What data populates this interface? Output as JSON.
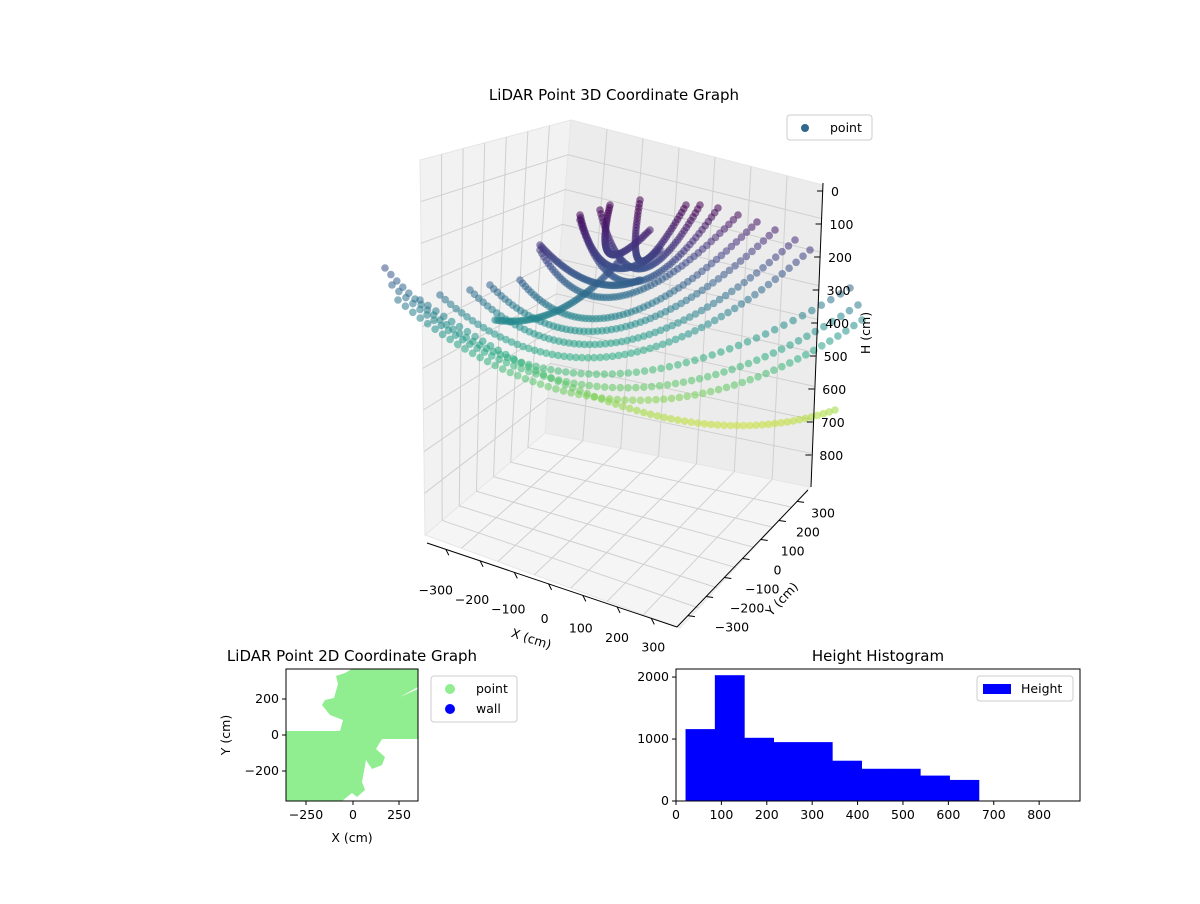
{
  "chart_data": [
    {
      "type": "scatter",
      "title": "LiDAR Point 3D Coordinate Graph",
      "xlabel": "X (cm)",
      "ylabel": "Y (cm)",
      "zlabel": "H (cm)",
      "xticks": [
        "−300",
        "−200",
        "−100",
        "0",
        "100",
        "200",
        "300"
      ],
      "yticks": [
        "−300",
        "−200",
        "−100",
        "0",
        "100",
        "200",
        "300"
      ],
      "zticks": [
        "0",
        "100",
        "200",
        "300",
        "400",
        "500",
        "600",
        "700",
        "800"
      ],
      "zlim": [
        0,
        850
      ],
      "zinverted": true,
      "colormap": "viridis",
      "legend": {
        "entries": [
          "point"
        ],
        "placement": "top-right"
      },
      "grid": true
    },
    {
      "type": "scatter",
      "title": "LiDAR Point 2D Coordinate Graph",
      "xlabel": "X (cm)",
      "ylabel": "Y (cm)",
      "xticks": [
        "−250",
        "0",
        "250"
      ],
      "yticks": [
        "200",
        "0",
        "−200"
      ],
      "xlim": [
        -360,
        350
      ],
      "ylim": [
        -355,
        365
      ],
      "series": [
        {
          "name": "point",
          "color": "#90ee90"
        },
        {
          "name": "wall",
          "color": "#0000ff"
        }
      ],
      "legend": {
        "entries": [
          "point",
          "wall"
        ],
        "placement": "outside-right"
      }
    },
    {
      "type": "bar",
      "title": "Height Histogram",
      "xlabel": "",
      "ylabel": "",
      "bin_edges": [
        21,
        85.6,
        150.2,
        214.8,
        279.4,
        344,
        408.6,
        473.2,
        537.8,
        602.4,
        667
      ],
      "values": [
        1160,
        2030,
        1020,
        950,
        950,
        650,
        520,
        520,
        410,
        340
      ],
      "color": "#0000ff",
      "xlim": [
        0,
        890
      ],
      "ylim": [
        0,
        2130
      ],
      "xticks": [
        "0",
        "100",
        "200",
        "300",
        "400",
        "500",
        "600",
        "700",
        "800"
      ],
      "yticks": [
        "0",
        "1000",
        "2000"
      ],
      "legend": {
        "entries": [
          "Height"
        ],
        "placement": "top-right"
      }
    }
  ]
}
